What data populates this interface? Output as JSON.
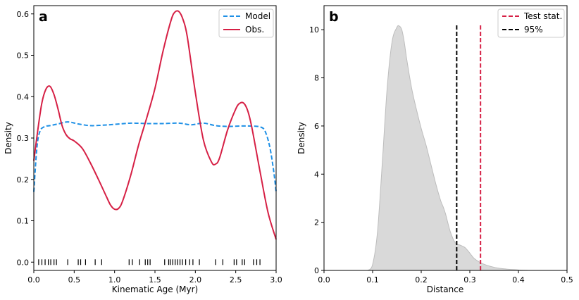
{
  "chart_data": [
    {
      "panel_label": "a",
      "type": "line",
      "xlabel": "Kinematic Age (Myr)",
      "ylabel": "Density",
      "xlim": [
        0.0,
        3.0
      ],
      "ylim": [
        -0.02,
        0.62
      ],
      "xticks": [
        0.0,
        0.5,
        1.0,
        1.5,
        2.0,
        2.5,
        3.0
      ],
      "xtick_labels": [
        "0.0",
        "0.5",
        "1.0",
        "1.5",
        "2.0",
        "2.5",
        "3.0"
      ],
      "yticks": [
        0.0,
        0.1,
        0.2,
        0.3,
        0.4,
        0.5,
        0.6
      ],
      "ytick_labels": [
        "0.0",
        "0.1",
        "0.2",
        "0.3",
        "0.4",
        "0.5",
        "0.6"
      ],
      "legend_position": "top-right",
      "series": [
        {
          "name": "Model",
          "color": "#1e90e6",
          "style": "dashed",
          "x": [
            0.0,
            0.04,
            0.08,
            0.14,
            0.2,
            0.3,
            0.42,
            0.55,
            0.7,
            0.85,
            1.0,
            1.2,
            1.4,
            1.6,
            1.8,
            1.95,
            2.1,
            2.25,
            2.4,
            2.55,
            2.7,
            2.8,
            2.86,
            2.92,
            2.97,
            3.0
          ],
          "y": [
            0.17,
            0.28,
            0.318,
            0.328,
            0.33,
            0.334,
            0.339,
            0.334,
            0.33,
            0.331,
            0.333,
            0.336,
            0.335,
            0.335,
            0.336,
            0.332,
            0.336,
            0.33,
            0.328,
            0.329,
            0.329,
            0.327,
            0.318,
            0.28,
            0.22,
            0.17
          ]
        },
        {
          "name": "Obs.",
          "color": "#d62045",
          "style": "solid",
          "x": [
            0.0,
            0.05,
            0.1,
            0.15,
            0.2,
            0.25,
            0.3,
            0.35,
            0.4,
            0.45,
            0.5,
            0.6,
            0.7,
            0.8,
            0.9,
            0.95,
            1.0,
            1.05,
            1.1,
            1.2,
            1.3,
            1.4,
            1.5,
            1.6,
            1.7,
            1.75,
            1.8,
            1.85,
            1.9,
            2.0,
            2.1,
            2.2,
            2.25,
            2.3,
            2.4,
            2.5,
            2.55,
            2.6,
            2.65,
            2.7,
            2.8,
            2.9,
            3.0
          ],
          "y": [
            0.245,
            0.32,
            0.385,
            0.418,
            0.425,
            0.405,
            0.37,
            0.33,
            0.308,
            0.298,
            0.293,
            0.275,
            0.24,
            0.2,
            0.158,
            0.138,
            0.128,
            0.13,
            0.148,
            0.21,
            0.285,
            0.35,
            0.42,
            0.51,
            0.585,
            0.605,
            0.605,
            0.585,
            0.545,
            0.41,
            0.295,
            0.242,
            0.237,
            0.252,
            0.32,
            0.37,
            0.384,
            0.384,
            0.365,
            0.325,
            0.22,
            0.12,
            0.055
          ]
        }
      ],
      "rug": [
        0.06,
        0.1,
        0.14,
        0.18,
        0.21,
        0.25,
        0.28,
        0.42,
        0.55,
        0.58,
        0.64,
        0.76,
        0.84,
        1.18,
        1.22,
        1.31,
        1.38,
        1.41,
        1.44,
        1.62,
        1.67,
        1.69,
        1.72,
        1.75,
        1.78,
        1.81,
        1.84,
        1.88,
        1.93,
        1.97,
        2.05,
        2.25,
        2.34,
        2.48,
        2.51,
        2.58,
        2.61,
        2.72,
        2.76,
        2.8
      ]
    },
    {
      "panel_label": "b",
      "type": "area",
      "xlabel": "Distance",
      "ylabel": "Density",
      "xlim": [
        0.0,
        0.5
      ],
      "ylim": [
        0.0,
        11.0
      ],
      "xticks": [
        0.0,
        0.1,
        0.2,
        0.3,
        0.4,
        0.5
      ],
      "xtick_labels": [
        "0.0",
        "0.1",
        "0.2",
        "0.3",
        "0.4",
        "0.5"
      ],
      "yticks": [
        0,
        2,
        4,
        6,
        8,
        10
      ],
      "ytick_labels": [
        "0",
        "2",
        "4",
        "6",
        "8",
        "10"
      ],
      "legend_position": "top-right",
      "density": {
        "fill": "#d9d9d9",
        "edge": "#bdbdbd",
        "x": [
          0.09,
          0.1,
          0.11,
          0.12,
          0.13,
          0.14,
          0.15,
          0.155,
          0.16,
          0.165,
          0.17,
          0.18,
          0.19,
          0.2,
          0.21,
          0.22,
          0.23,
          0.24,
          0.245,
          0.25,
          0.26,
          0.27,
          0.28,
          0.29,
          0.3,
          0.31,
          0.33,
          0.36,
          0.4,
          0.42
        ],
        "y": [
          0.0,
          0.25,
          1.6,
          4.5,
          7.6,
          9.5,
          10.1,
          10.15,
          10.0,
          9.5,
          8.8,
          7.6,
          6.7,
          5.9,
          5.2,
          4.4,
          3.6,
          2.9,
          2.65,
          2.35,
          1.6,
          1.15,
          1.05,
          0.95,
          0.72,
          0.48,
          0.25,
          0.09,
          0.02,
          0.0
        ]
      },
      "lines": [
        {
          "name": "Test stat.",
          "x": 0.322,
          "color": "#d62045",
          "style": "dashed",
          "ymax": 10.2
        },
        {
          "name": "95%",
          "x": 0.273,
          "color": "#000000",
          "style": "dashed",
          "ymax": 10.2
        }
      ]
    }
  ]
}
